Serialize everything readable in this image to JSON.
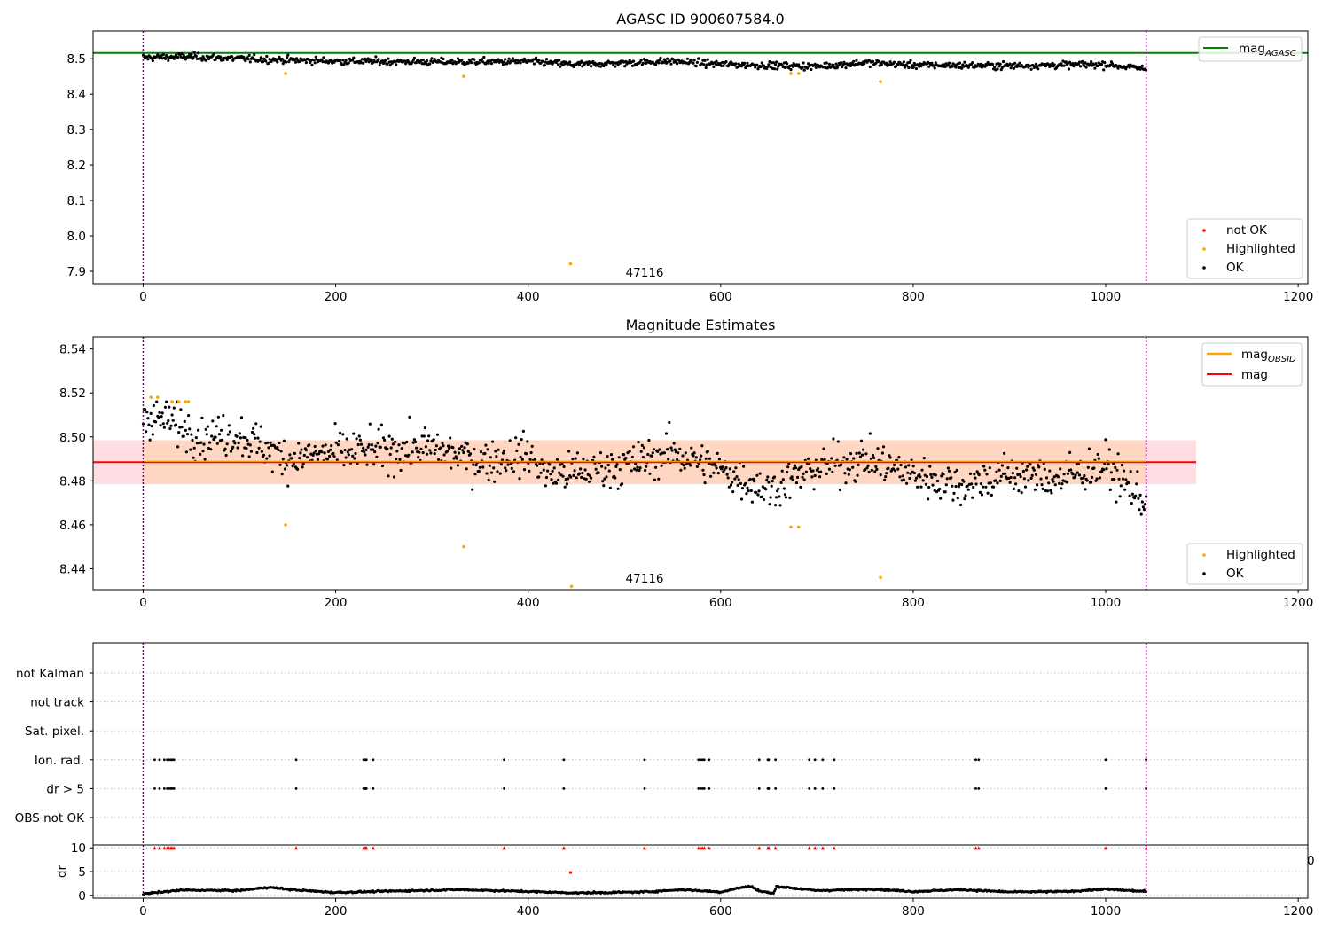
{
  "chart_data": [
    {
      "panel": "top",
      "type": "scatter",
      "title": "AGASC ID 900607584.0",
      "xlim": [
        -52,
        1210
      ],
      "ylim": [
        7.865,
        8.578
      ],
      "xticks": [
        "0",
        "200",
        "400",
        "600",
        "800",
        "1000",
        "1200"
      ],
      "xtick_values": [
        0,
        200,
        400,
        600,
        800,
        1000,
        1200
      ],
      "yticks": [
        "7.9",
        "8.0",
        "8.1",
        "8.2",
        "8.3",
        "8.4",
        "8.5"
      ],
      "ytick_values": [
        7.9,
        8.0,
        8.1,
        8.2,
        8.3,
        8.4,
        8.5
      ],
      "vlines": [
        0,
        1042
      ],
      "vline_color": "#7f007f",
      "hline": {
        "y": 8.516,
        "color": "#008000",
        "label_main": "mag",
        "label_sub": "AGASC"
      },
      "obsid_label": {
        "text": "47116",
        "x": 521
      },
      "ok_trend": [
        [
          0,
          8.503
        ],
        [
          50,
          8.506
        ],
        [
          100,
          8.5
        ],
        [
          200,
          8.493
        ],
        [
          300,
          8.491
        ],
        [
          400,
          8.492
        ],
        [
          450,
          8.483
        ],
        [
          550,
          8.493
        ],
        [
          600,
          8.484
        ],
        [
          700,
          8.478
        ],
        [
          750,
          8.489
        ],
        [
          800,
          8.482
        ],
        [
          900,
          8.48
        ],
        [
          1000,
          8.484
        ],
        [
          1042,
          8.47
        ]
      ],
      "ok_scatter_sd": 0.007,
      "ok_count": 1040,
      "highlighted": [
        [
          148,
          8.458
        ],
        [
          333,
          8.45
        ],
        [
          444,
          7.921
        ],
        [
          673,
          8.458
        ],
        [
          681,
          8.458
        ],
        [
          766,
          8.435
        ]
      ],
      "legend": {
        "position": "lower right",
        "entries": [
          {
            "label": "not OK",
            "color": "#ff0000"
          },
          {
            "label": "Highlighted",
            "color": "#ffa500"
          },
          {
            "label": "OK",
            "color": "#000000"
          }
        ]
      }
    },
    {
      "panel": "middle",
      "type": "scatter",
      "title": "Magnitude Estimates",
      "xlim": [
        -52,
        1210
      ],
      "ylim": [
        8.4305,
        8.5455
      ],
      "xticks": [
        "0",
        "200",
        "400",
        "600",
        "800",
        "1000",
        "1200"
      ],
      "xtick_values": [
        0,
        200,
        400,
        600,
        800,
        1000,
        1200
      ],
      "yticks": [
        "8.44",
        "8.46",
        "8.48",
        "8.50",
        "8.52",
        "8.54"
      ],
      "ytick_values": [
        8.44,
        8.46,
        8.48,
        8.5,
        8.52,
        8.54
      ],
      "vlines": [
        0,
        1042
      ],
      "vline_color": "#7f007f",
      "mag_line": {
        "y": 8.4885,
        "color": "#ff0000",
        "label": "mag"
      },
      "obsid_mag": {
        "y": 8.4885,
        "color": "#ffa500",
        "label_main": "mag",
        "label_sub": "OBSID"
      },
      "band_outer": {
        "y0": 8.4785,
        "y1": 8.4985,
        "x0": -52,
        "x1": 1094,
        "color": "#ffdde3"
      },
      "band_inner": {
        "y0": 8.4785,
        "y1": 8.4985,
        "x0": 0,
        "x1": 1042,
        "color": "#ffd6c2"
      },
      "obsid_label": {
        "text": "47116",
        "x": 521
      },
      "ok_trend": [
        [
          0,
          8.51
        ],
        [
          30,
          8.507
        ],
        [
          60,
          8.5
        ],
        [
          100,
          8.501
        ],
        [
          150,
          8.49
        ],
        [
          200,
          8.493
        ],
        [
          250,
          8.494
        ],
        [
          300,
          8.495
        ],
        [
          350,
          8.489
        ],
        [
          400,
          8.492
        ],
        [
          420,
          8.483
        ],
        [
          450,
          8.484
        ],
        [
          500,
          8.487
        ],
        [
          550,
          8.493
        ],
        [
          600,
          8.485
        ],
        [
          650,
          8.476
        ],
        [
          700,
          8.486
        ],
        [
          750,
          8.49
        ],
        [
          800,
          8.483
        ],
        [
          850,
          8.478
        ],
        [
          900,
          8.483
        ],
        [
          950,
          8.481
        ],
        [
          1000,
          8.487
        ],
        [
          1042,
          8.47
        ]
      ],
      "ok_scatter_sd": 0.0065,
      "ok_count": 1040,
      "highlighted": [
        [
          8,
          8.518
        ],
        [
          15,
          8.518
        ],
        [
          30,
          8.516
        ],
        [
          37,
          8.516
        ],
        [
          44,
          8.516
        ],
        [
          47,
          8.516
        ],
        [
          148,
          8.46
        ],
        [
          333,
          8.45
        ],
        [
          445,
          8.432
        ],
        [
          673,
          8.459
        ],
        [
          681,
          8.459
        ],
        [
          766,
          8.436
        ]
      ],
      "legend_top": {
        "position": "upper right",
        "entries": [
          {
            "label_main": "mag",
            "label_sub": "OBSID",
            "color": "#ffa500"
          },
          {
            "label_main": "mag",
            "label_sub": "",
            "color": "#ff0000"
          }
        ]
      },
      "legend_bottom": {
        "position": "lower right",
        "entries": [
          {
            "label": "Highlighted",
            "color": "#ffa500"
          },
          {
            "label": "OK",
            "color": "#000000"
          }
        ]
      }
    },
    {
      "panel": "flags",
      "type": "scatter",
      "xlim": [
        -52,
        1210
      ],
      "categories": [
        "not Kalman",
        "not track",
        "Sat. pixel.",
        "Ion. rad.",
        "dr > 5",
        "OBS not OK"
      ],
      "flag_x": [
        12,
        17,
        22,
        25,
        27,
        29,
        30,
        32,
        159,
        229,
        230,
        231,
        232,
        239,
        375,
        437,
        521,
        577,
        579,
        581,
        583,
        588,
        640,
        649,
        650,
        657,
        692,
        698,
        706,
        718,
        865,
        868,
        1000,
        1042
      ],
      "flag_rows": [
        "Ion. rad.",
        "dr > 5"
      ]
    },
    {
      "panel": "dr",
      "type": "scatter",
      "ylabel": "dr",
      "xlim": [
        -52,
        1210
      ],
      "ylim": [
        -0.6,
        10.6
      ],
      "xticks": [
        "0",
        "200",
        "400",
        "600",
        "800",
        "1000",
        "1200"
      ],
      "xtick_values": [
        0,
        200,
        400,
        600,
        800,
        1000,
        1200
      ],
      "yticks": [
        "0",
        "5",
        "10"
      ],
      "ytick_values": [
        0,
        5,
        10
      ],
      "edge_label": "0",
      "red_markers_y": 10,
      "outlier": [
        444,
        4.8
      ],
      "dr_trend": [
        [
          0,
          0.3
        ],
        [
          40,
          1.1
        ],
        [
          100,
          1.0
        ],
        [
          130,
          1.7
        ],
        [
          160,
          1.1
        ],
        [
          200,
          0.6
        ],
        [
          260,
          0.9
        ],
        [
          330,
          1.2
        ],
        [
          400,
          0.8
        ],
        [
          450,
          0.5
        ],
        [
          520,
          0.7
        ],
        [
          560,
          1.2
        ],
        [
          600,
          0.7
        ],
        [
          620,
          1.6
        ],
        [
          632,
          1.9
        ],
        [
          640,
          0.9
        ],
        [
          655,
          0.4
        ],
        [
          658,
          1.9
        ],
        [
          700,
          1.0
        ],
        [
          760,
          1.3
        ],
        [
          800,
          0.8
        ],
        [
          850,
          1.2
        ],
        [
          900,
          0.7
        ],
        [
          960,
          0.8
        ],
        [
          1000,
          1.3
        ],
        [
          1042,
          0.8
        ]
      ]
    }
  ]
}
